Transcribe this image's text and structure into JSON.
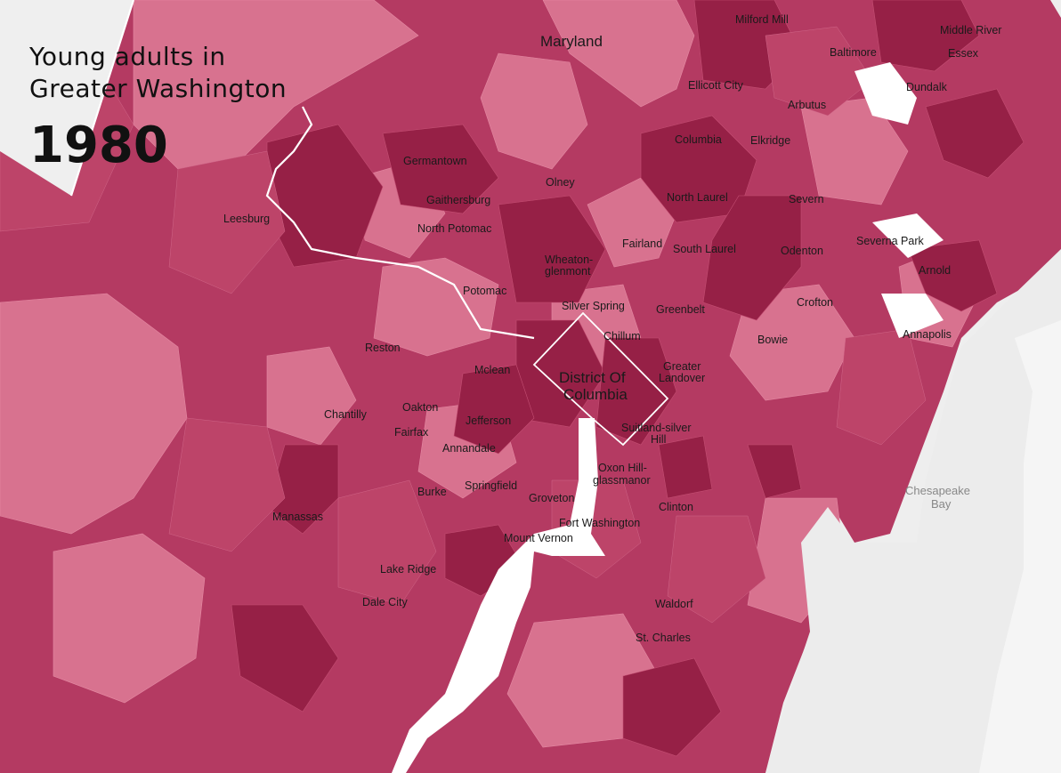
{
  "title": "Young adults in Greater Washington",
  "year": "1980",
  "colors": {
    "land_light": "#e08aa3",
    "land_mid": "#c44f73",
    "land_dark": "#9b1f48",
    "land_darkest": "#7e0f37",
    "water": "#ffffff",
    "outside": "#eeeeee",
    "boundary": "#ffffff"
  },
  "labels": {
    "maryland": "Maryland",
    "milford_mill": "Milford Mill",
    "middle_river": "Middle River",
    "baltimore": "Baltimore",
    "essex": "Essex",
    "ellicott_city": "Ellicott City",
    "dundalk": "Dundalk",
    "arbutus": "Arbutus",
    "columbia": "Columbia",
    "elkridge": "Elkridge",
    "germantown": "Germantown",
    "olney": "Olney",
    "gaithersburg": "Gaithersburg",
    "north_laurel": "North Laurel",
    "severn": "Severn",
    "leesburg": "Leesburg",
    "north_potomac": "North Potomac",
    "fairland": "Fairland",
    "south_laurel": "South Laurel",
    "severna_park": "Severna Park",
    "odenton": "Odenton",
    "wheaton_1": "Wheaton-",
    "wheaton_2": "glenmont",
    "arnold": "Arnold",
    "potomac": "Potomac",
    "crofton": "Crofton",
    "silver_spring": "Silver Spring",
    "greenbelt": "Greenbelt",
    "chillum": "Chillum",
    "annapolis": "Annapolis",
    "bowie": "Bowie",
    "reston": "Reston",
    "mclean": "Mclean",
    "greater_landover_1": "Greater",
    "greater_landover_2": "Landover",
    "dc_1": "District Of",
    "dc_2": "Columbia",
    "chantilly": "Chantilly",
    "oakton": "Oakton",
    "jefferson": "Jefferson",
    "fairfax": "Fairfax",
    "suitland_1": "Suitland-silver",
    "suitland_2": "Hill",
    "annandale": "Annandale",
    "oxon_hill_1": "Oxon Hill-",
    "oxon_hill_2": "glassmanor",
    "burke": "Burke",
    "springfield": "Springfield",
    "groveton": "Groveton",
    "chesapeake_1": "Chesapeake",
    "chesapeake_2": "Bay",
    "manassas": "Manassas",
    "clinton": "Clinton",
    "fort_washington": "Fort Washington",
    "mount_vernon": "Mount Vernon",
    "lake_ridge": "Lake Ridge",
    "dale_city": "Dale City",
    "waldorf": "Waldorf",
    "st_charles": "St. Charles"
  }
}
